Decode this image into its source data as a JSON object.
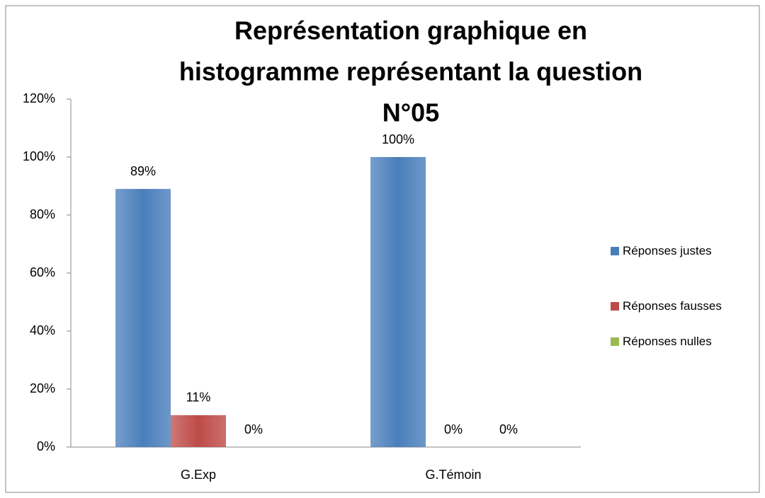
{
  "chart_data": {
    "type": "bar",
    "title": [
      "Représentation graphique en",
      "histogramme représentant la question",
      "N°05"
    ],
    "categories": [
      "G.Exp",
      "G.Témoin"
    ],
    "series": [
      {
        "name": "Réponses justes",
        "color": "#4a7ebb",
        "values": [
          89,
          100
        ],
        "value_labels": [
          "89%",
          "100%"
        ]
      },
      {
        "name": "Réponses fausses",
        "color": "#be4b48",
        "values": [
          11,
          0
        ],
        "value_labels": [
          "11%",
          "0%"
        ]
      },
      {
        "name": "Réponses nulles",
        "color": "#98b954",
        "values": [
          0,
          0
        ],
        "value_labels": [
          "0%",
          "0%"
        ]
      }
    ],
    "ylim": [
      0,
      120
    ],
    "yticks": [
      {
        "value": 0,
        "label": "0%"
      },
      {
        "value": 20,
        "label": "20%"
      },
      {
        "value": 40,
        "label": "40%"
      },
      {
        "value": 60,
        "label": "60%"
      },
      {
        "value": 80,
        "label": "80%"
      },
      {
        "value": 100,
        "label": "100%"
      },
      {
        "value": 120,
        "label": "120%"
      }
    ],
    "grid": false,
    "legend": "right"
  }
}
